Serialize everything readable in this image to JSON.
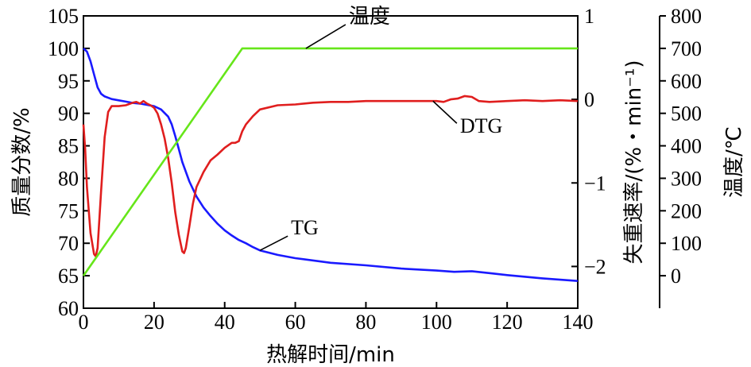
{
  "chart_data": {
    "type": "line",
    "xlabel": "热解时间/min",
    "x_ticks": [
      "0",
      "20",
      "40",
      "60",
      "80",
      "100",
      "120",
      "140"
    ],
    "xlim": [
      0,
      140
    ],
    "axes": {
      "left": {
        "label": "质量分数/%",
        "ylim": [
          60,
          105
        ],
        "ticks": [
          "60",
          "65",
          "70",
          "75",
          "80",
          "85",
          "90",
          "95",
          "100",
          "105"
        ]
      },
      "right1": {
        "label": "失重速率/(%・min⁻¹)",
        "ylim": [
          -2.5,
          1
        ],
        "ticks": [
          "-2",
          "-1",
          "0",
          "1"
        ]
      },
      "right2": {
        "label": "温度/℃",
        "ylim": [
          -100,
          800
        ],
        "ticks": [
          "0",
          "100",
          "200",
          "300",
          "400",
          "500",
          "600",
          "700",
          "800"
        ]
      }
    },
    "series": [
      {
        "name": "TG",
        "axis": "left",
        "color": "#1a1aff",
        "x": [
          0,
          1,
          2,
          3,
          4,
          5,
          6,
          8,
          10,
          12,
          14,
          16,
          18,
          20,
          22,
          24,
          25,
          26,
          27,
          28,
          30,
          32,
          34,
          36,
          38,
          40,
          42,
          44,
          46,
          48,
          50,
          55,
          60,
          70,
          80,
          90,
          100,
          105,
          110,
          115,
          120,
          130,
          140
        ],
        "y": [
          100,
          99.5,
          98,
          96,
          94,
          93,
          92.6,
          92.2,
          92,
          91.8,
          91.6,
          91.5,
          91.3,
          91.1,
          90.6,
          89.5,
          88.3,
          86.5,
          84.5,
          82.5,
          79.5,
          77.2,
          75.5,
          74.2,
          73,
          72,
          71.2,
          70.5,
          70,
          69.4,
          68.9,
          68.2,
          67.7,
          67,
          66.6,
          66.1,
          65.8,
          65.6,
          65.7,
          65.4,
          65.1,
          64.6,
          64.2
        ]
      },
      {
        "name": "DTG",
        "axis": "right1",
        "color": "#e01e1e",
        "x": [
          0,
          0.5,
          1,
          2,
          3,
          3.5,
          4,
          5,
          6,
          7,
          8,
          10,
          12,
          14,
          15,
          16,
          17,
          18,
          19,
          20,
          21,
          22,
          23,
          24,
          25,
          26,
          27,
          28,
          28.5,
          29,
          30,
          31,
          32,
          34,
          36,
          38,
          40,
          42,
          43,
          44,
          45,
          46,
          48,
          50,
          55,
          60,
          65,
          70,
          75,
          80,
          85,
          90,
          95,
          100,
          102,
          104,
          106,
          108,
          110,
          112,
          115,
          120,
          125,
          130,
          135,
          140
        ],
        "y": [
          -0.3,
          -0.6,
          -1.05,
          -1.6,
          -1.85,
          -1.88,
          -1.78,
          -1.1,
          -0.45,
          -0.15,
          -0.08,
          -0.08,
          -0.07,
          -0.04,
          -0.03,
          -0.05,
          -0.02,
          -0.05,
          -0.07,
          -0.1,
          -0.17,
          -0.3,
          -0.47,
          -0.7,
          -1.0,
          -1.35,
          -1.62,
          -1.82,
          -1.84,
          -1.78,
          -1.52,
          -1.25,
          -1.05,
          -0.87,
          -0.73,
          -0.66,
          -0.58,
          -0.52,
          -0.52,
          -0.5,
          -0.38,
          -0.3,
          -0.2,
          -0.12,
          -0.07,
          -0.06,
          -0.04,
          -0.03,
          -0.03,
          -0.02,
          -0.02,
          -0.02,
          -0.02,
          -0.02,
          -0.03,
          0,
          0.01,
          0.04,
          0.03,
          -0.02,
          -0.03,
          -0.02,
          -0.01,
          -0.02,
          -0.01,
          -0.02
        ]
      },
      {
        "name": "温度",
        "axis": "right2",
        "color": "#66e61a",
        "x": [
          0,
          45,
          140
        ],
        "y": [
          0,
          700,
          700
        ]
      }
    ],
    "annotations": [
      {
        "text": "温度",
        "series": "温度"
      },
      {
        "text": "DTG",
        "series": "DTG"
      },
      {
        "text": "TG",
        "series": "TG"
      }
    ]
  }
}
